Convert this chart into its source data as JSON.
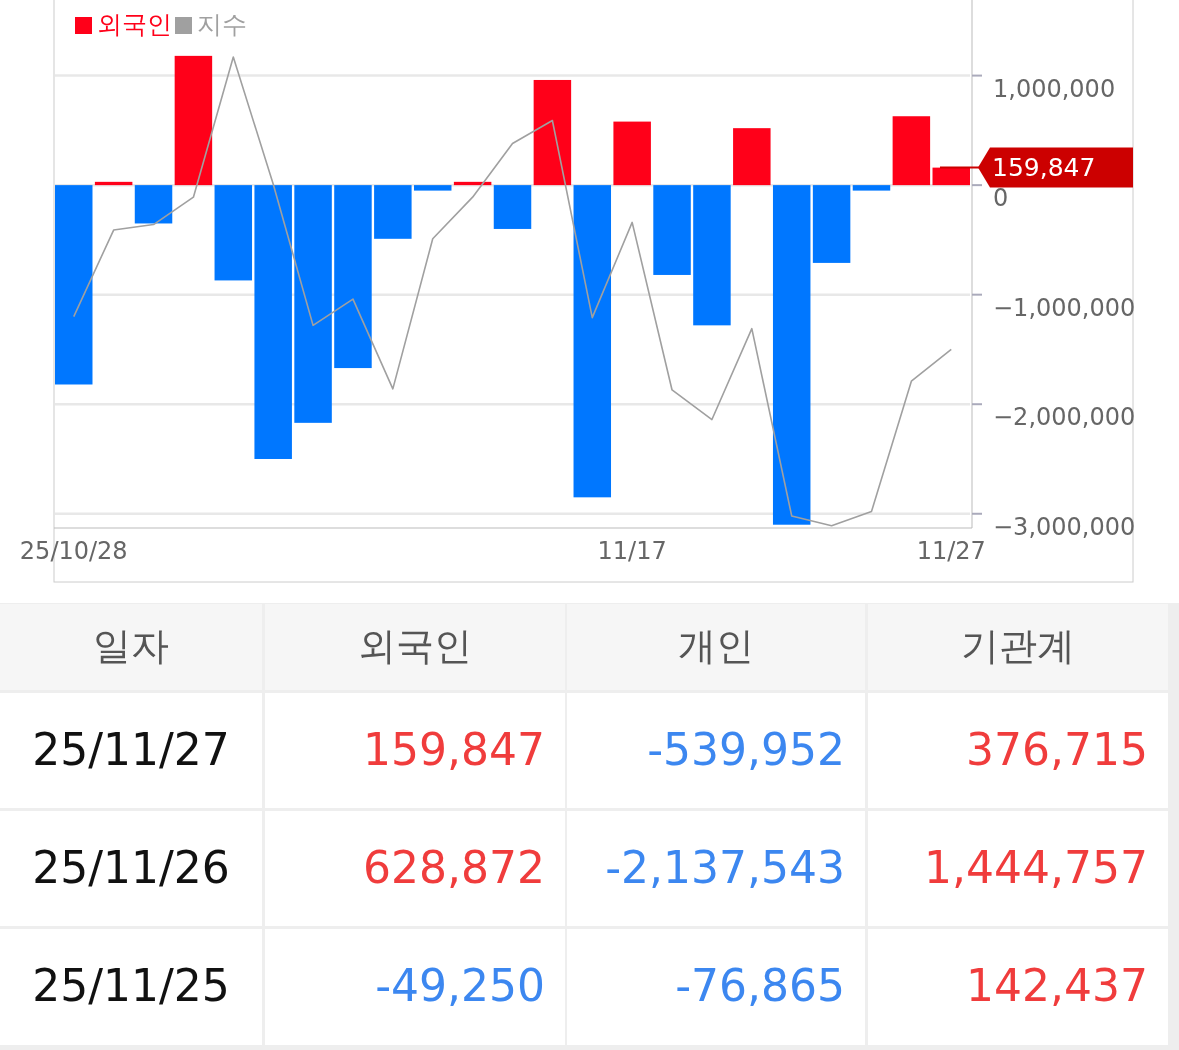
{
  "chart_data": [
    {
      "type": "bar",
      "categories": [
        "25/10/28",
        null,
        null,
        null,
        null,
        null,
        null,
        null,
        null,
        null,
        null,
        null,
        null,
        null,
        "11/17",
        null,
        null,
        null,
        null,
        null,
        null,
        null,
        "11/27"
      ],
      "series": [
        {
          "name": "외국인",
          "type": "bar",
          "values": [
            -1820000,
            30000,
            -350000,
            1180000,
            -870000,
            -2500000,
            -2170000,
            -1670000,
            -490000,
            -50000,
            30000,
            -400000,
            960000,
            -2850000,
            580000,
            -820000,
            -1280000,
            520000,
            -3100000,
            -710000,
            -50000,
            628872,
            159847
          ],
          "colors": [
            "#0077ff",
            "#ff0019",
            "#0077ff",
            "#ff0019",
            "#0077ff",
            "#0077ff",
            "#0077ff",
            "#0077ff",
            "#0077ff",
            "#0077ff",
            "#ff0019",
            "#0077ff",
            "#ff0019",
            "#0077ff",
            "#ff0019",
            "#0077ff",
            "#0077ff",
            "#ff0019",
            "#0077ff",
            "#0077ff",
            "#0077ff",
            "#ff0019",
            "#ff0019"
          ],
          "color": "#ff0019"
        },
        {
          "name": "지수",
          "type": "line",
          "color": "#a0a0a0",
          "values": [
            -1200000,
            -410000,
            -360000,
            -110000,
            1170000,
            10000,
            -1280000,
            -1040000,
            -1860000,
            -490000,
            -110000,
            380000,
            590000,
            -1210000,
            -340000,
            -1870000,
            -2140000,
            -1310000,
            -3020000,
            -3110000,
            -2980000,
            -1790000,
            -1500000
          ]
        }
      ],
      "ylim": [
        -3130000,
        1690000
      ],
      "yticks": [
        {
          "value": 1000000,
          "label": "1,000,000"
        },
        {
          "value": 0,
          "label": "0"
        },
        {
          "value": -1000000,
          "label": "−1,000,000"
        },
        {
          "value": -2000000,
          "label": "−2,000,000"
        },
        {
          "value": -3000000,
          "label": "−3,000,000"
        }
      ],
      "grid": "y",
      "legend": "top left",
      "ref_lines": [
        {
          "axis": "y",
          "value": 159847,
          "label": "159,847",
          "color": "#cc0000"
        }
      ]
    },
    {
      "type": "other",
      "categories": [
        "일자",
        "외국인",
        "개인",
        "기관계"
      ],
      "annotations": [
        "25/11/27",
        "159,847",
        "-539,952",
        "376,715",
        "25/11/26",
        "628,872",
        "-2,137,543",
        "1,444,757",
        "25/11/25",
        "-49,250",
        "-76,865",
        "142,437"
      ],
      "colors": [
        "#f6f6f6",
        "#f6f6f6",
        "#f6f6f6",
        "#f6f6f6",
        "#111111",
        "#f03c3c",
        "#3c87f0",
        "#f03c3c",
        "#111111",
        "#f03c3c",
        "#3c87f0",
        "#f03c3c",
        "#111111",
        "#3c87f0",
        "#3c87f0",
        "#f03c3c"
      ]
    }
  ]
}
